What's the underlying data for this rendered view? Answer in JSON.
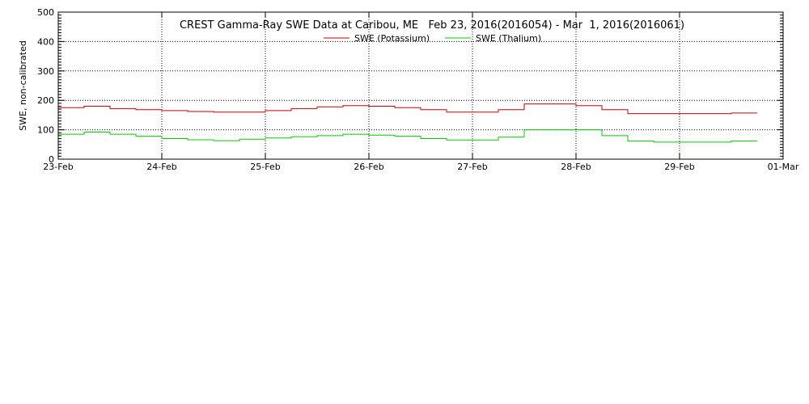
{
  "chart_data": {
    "type": "line",
    "title": "CREST Gamma-Ray SWE Data at Caribou, ME   Feb 23, 2016(2016054) - Mar  1, 2016(2016061)",
    "xlabel": "",
    "ylabel": "SWE, non-calibrated",
    "ylim": [
      0,
      500
    ],
    "yticks": [
      0,
      100,
      200,
      300,
      400,
      500
    ],
    "xlim": [
      0,
      7
    ],
    "xticks": [
      0,
      1,
      2,
      3,
      4,
      5,
      6,
      7
    ],
    "xtick_labels": [
      "23-Feb",
      "24-Feb",
      "25-Feb",
      "26-Feb",
      "27-Feb",
      "28-Feb",
      "29-Feb",
      "01-Mar"
    ],
    "grid": true,
    "legend": "top-center",
    "series": [
      {
        "name": "SWE (Potassium)",
        "color": "#cc0000",
        "x": [
          0,
          0.25,
          0.25,
          0.5,
          0.5,
          0.75,
          0.75,
          1.0,
          1.0,
          1.25,
          1.25,
          1.5,
          1.5,
          2.0,
          2.0,
          2.25,
          2.25,
          2.5,
          2.5,
          2.75,
          2.75,
          3.0,
          3.0,
          3.25,
          3.25,
          3.5,
          3.5,
          3.75,
          3.75,
          4.0,
          4.0,
          4.25,
          4.25,
          4.5,
          4.5,
          4.75,
          4.75,
          5.0,
          5.0,
          5.25,
          5.25,
          5.5,
          5.5,
          5.75,
          5.75,
          6.0,
          6.0,
          6.25,
          6.25,
          6.5,
          6.5,
          6.75
        ],
        "y": [
          175,
          175,
          180,
          180,
          172,
          172,
          168,
          168,
          165,
          165,
          162,
          162,
          160,
          160,
          165,
          165,
          172,
          172,
          178,
          178,
          182,
          182,
          180,
          180,
          175,
          175,
          168,
          168,
          160,
          160,
          160,
          160,
          168,
          168,
          188,
          188,
          188,
          188,
          182,
          182,
          168,
          168,
          155,
          155,
          155,
          155,
          155,
          155,
          155,
          155,
          157,
          157
        ]
      },
      {
        "name": "SWE (Thalium)",
        "color": "#00cc00",
        "x": [
          0,
          0.25,
          0.25,
          0.5,
          0.5,
          0.75,
          0.75,
          1.0,
          1.0,
          1.25,
          1.25,
          1.5,
          1.5,
          1.75,
          1.75,
          2.0,
          2.0,
          2.25,
          2.25,
          2.5,
          2.5,
          2.75,
          2.75,
          3.0,
          3.0,
          3.25,
          3.25,
          3.5,
          3.5,
          3.75,
          3.75,
          4.0,
          4.0,
          4.25,
          4.25,
          4.5,
          4.5,
          4.75,
          4.75,
          5.0,
          5.0,
          5.25,
          5.25,
          5.5,
          5.5,
          5.75,
          5.75,
          6.0,
          6.0,
          6.5,
          6.5,
          6.75
        ],
        "y": [
          85,
          85,
          92,
          92,
          85,
          85,
          78,
          78,
          70,
          70,
          66,
          66,
          63,
          63,
          68,
          68,
          72,
          72,
          76,
          76,
          80,
          80,
          85,
          85,
          82,
          82,
          78,
          78,
          70,
          70,
          65,
          65,
          65,
          65,
          75,
          75,
          100,
          100,
          100,
          100,
          100,
          100,
          80,
          80,
          62,
          62,
          58,
          58,
          58,
          58,
          62,
          62
        ]
      }
    ]
  }
}
